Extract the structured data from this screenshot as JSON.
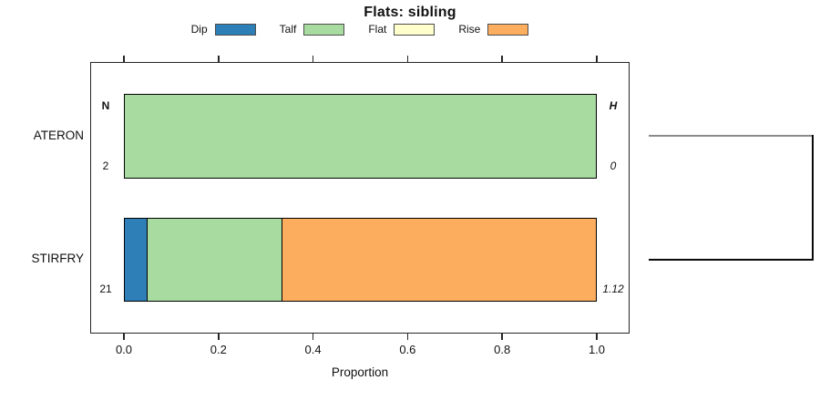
{
  "chart_data": {
    "type": "bar",
    "orientation": "horizontal-stacked",
    "title": "Flats: sibling",
    "xlabel": "Proportion",
    "xlim": [
      0.0,
      1.0
    ],
    "grid": false,
    "legend_position": "top",
    "legend": [
      {
        "label": "Dip",
        "color": "#2e7eb8"
      },
      {
        "label": "Talf",
        "color": "#a8dba0"
      },
      {
        "label": "Flat",
        "color": "#ffffcc"
      },
      {
        "label": "Rise",
        "color": "#fcad5e"
      }
    ],
    "categories": [
      "ATERON",
      "STIRFRY"
    ],
    "series": [
      {
        "name": "Dip",
        "color": "#2e7eb8",
        "values": [
          0,
          0.048
        ]
      },
      {
        "name": "Talf",
        "color": "#a8dba0",
        "values": [
          1.0,
          0.286
        ]
      },
      {
        "name": "Flat",
        "color": "#ffffcc",
        "values": [
          0,
          0
        ]
      },
      {
        "name": "Rise",
        "color": "#fcad5e",
        "values": [
          0,
          0.667
        ]
      }
    ],
    "x_ticks": [
      {
        "label": "0.0",
        "value": 0.0
      },
      {
        "label": "0.2",
        "value": 0.2
      },
      {
        "label": "0.4",
        "value": 0.4
      },
      {
        "label": "0.6",
        "value": 0.6
      },
      {
        "label": "0.8",
        "value": 0.8
      },
      {
        "label": "1.0",
        "value": 1.0
      }
    ],
    "row_annotations": {
      "left_header": "N",
      "right_header": "H",
      "n_values": [
        "2",
        "21"
      ],
      "h_values": [
        "0",
        "1.12"
      ]
    }
  },
  "colors": {
    "axis": "#262626",
    "bar_border": "#000000",
    "link_top": "#8a8a8a",
    "link_bottom": "#0a0a0a"
  }
}
